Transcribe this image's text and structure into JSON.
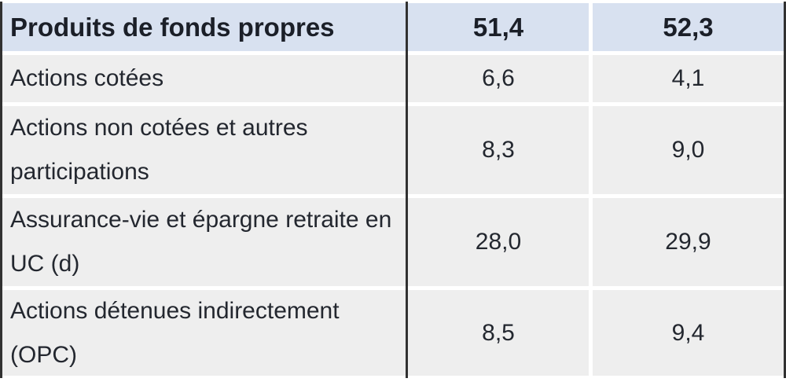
{
  "table": {
    "header": {
      "label": "Produits de fonds propres",
      "value1": "51,4",
      "value2": "52,3"
    },
    "rows": [
      {
        "label": "Actions cotées",
        "value1": "6,6",
        "value2": "4,1"
      },
      {
        "label": "Actions non cotées et autres\nparticipations",
        "value1": "8,3",
        "value2": "9,0"
      },
      {
        "label": "Assurance-vie et épargne retraite en\nUC (d)",
        "value1": "28,0",
        "value2": "29,9"
      },
      {
        "label": "Actions détenues indirectement\n(OPC)",
        "value1": "8,5",
        "value2": "9,4"
      }
    ],
    "colors": {
      "header_background": "#d8e1f0",
      "row_background": "#eeeeee",
      "border": "#313131",
      "header_text": "#1b1f28",
      "body_text": "#23272f"
    }
  }
}
